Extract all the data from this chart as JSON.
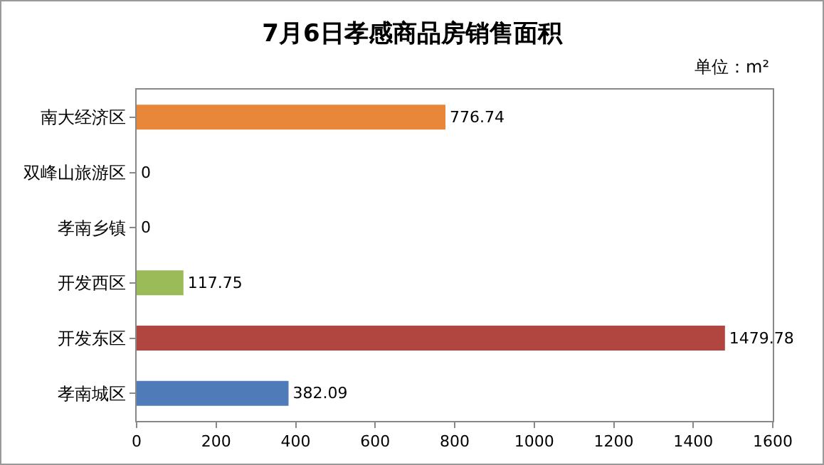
{
  "chart_data": {
    "type": "bar",
    "orientation": "horizontal",
    "title": "7月6日孝感商品房销售面积",
    "categories": [
      "南大经济区",
      "双峰山旅游区",
      "孝南乡镇",
      "开发西区",
      "开发东区",
      "孝南城区"
    ],
    "values": [
      776.74,
      0,
      0,
      117.75,
      1479.78,
      382.09
    ],
    "colors": [
      "#e8863a",
      null,
      null,
      "#9bbb59",
      "#b0463f",
      "#4f7cb8"
    ],
    "xlim": [
      0,
      1600
    ],
    "xticks": [
      0,
      200,
      400,
      600,
      800,
      1000,
      1200,
      1400,
      1600
    ],
    "grid": false,
    "data_labels": true,
    "annotations": [
      "单位：m²"
    ]
  }
}
